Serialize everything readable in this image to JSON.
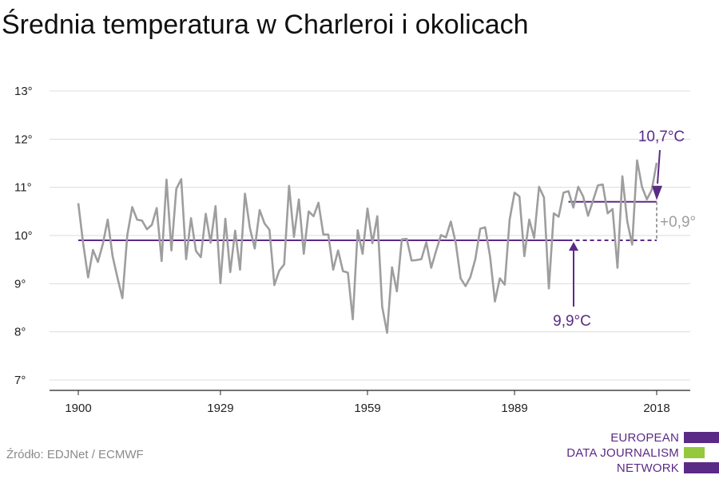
{
  "title": "Średnia temperatura w Charleroi i okolicach",
  "source": "Źródło: EDJNet / ECMWF",
  "logo": {
    "lines": [
      "EUROPEAN",
      "DATA JOURNALISM",
      "NETWORK"
    ],
    "colors": {
      "purple": "#5b2a86",
      "green": "#95c83d"
    }
  },
  "chart_data": {
    "type": "line",
    "y_ticks": [
      "13°",
      "12°",
      "11°",
      "10°",
      "9°",
      "8°",
      "7°"
    ],
    "x_ticks": [
      "1900",
      "1929",
      "1959",
      "1989",
      "2018"
    ],
    "ylim": [
      7,
      13
    ],
    "xlim": [
      1900,
      2018
    ],
    "grid": true,
    "series": [
      {
        "color": "#9e9e9e",
        "x": [
          1900,
          1901,
          1902,
          1903,
          1904,
          1905,
          1906,
          1907,
          1908,
          1909,
          1910,
          1911,
          1912,
          1913,
          1914,
          1915,
          1916,
          1917,
          1918,
          1919,
          1920,
          1921,
          1922,
          1923,
          1924,
          1925,
          1926,
          1927,
          1928,
          1929,
          1930,
          1931,
          1932,
          1933,
          1934,
          1935,
          1936,
          1937,
          1938,
          1939,
          1940,
          1941,
          1942,
          1943,
          1944,
          1945,
          1946,
          1947,
          1948,
          1949,
          1950,
          1951,
          1952,
          1953,
          1954,
          1955,
          1956,
          1957,
          1958,
          1959,
          1960,
          1961,
          1962,
          1963,
          1964,
          1965,
          1966,
          1967,
          1968,
          1969,
          1970,
          1971,
          1972,
          1973,
          1974,
          1975,
          1976,
          1977,
          1978,
          1979,
          1980,
          1981,
          1982,
          1983,
          1984,
          1985,
          1986,
          1987,
          1988,
          1989,
          1990,
          1991,
          1992,
          1993,
          1994,
          1995,
          1996,
          1997,
          1998,
          1999,
          2000,
          2001,
          2002,
          2003,
          2004,
          2005,
          2006,
          2007,
          2008,
          2009,
          2010,
          2011,
          2012,
          2013,
          2014,
          2015,
          2016,
          2017,
          2018
        ],
        "values": [
          10.67,
          9.83,
          9.13,
          9.7,
          9.45,
          9.82,
          10.33,
          9.57,
          9.12,
          8.7,
          10.01,
          10.59,
          10.33,
          10.31,
          10.13,
          10.22,
          10.57,
          9.47,
          11.16,
          9.69,
          10.97,
          11.17,
          9.51,
          10.36,
          9.68,
          9.55,
          10.45,
          9.85,
          10.61,
          9.01,
          10.35,
          9.24,
          10.1,
          9.29,
          10.87,
          10.16,
          9.73,
          10.53,
          10.25,
          10.12,
          8.97,
          9.27,
          9.4,
          11.03,
          9.97,
          10.75,
          9.62,
          10.5,
          10.4,
          10.68,
          10.02,
          10.02,
          9.29,
          9.69,
          9.26,
          9.23,
          8.26,
          10.11,
          9.62,
          10.56,
          9.84,
          10.4,
          8.52,
          7.98,
          9.34,
          8.84,
          9.92,
          9.93,
          9.48,
          9.49,
          9.51,
          9.86,
          9.33,
          9.68,
          10.01,
          9.96,
          10.29,
          9.85,
          9.11,
          8.95,
          9.14,
          9.51,
          10.14,
          10.17,
          9.57,
          8.63,
          9.11,
          8.98,
          10.33,
          10.89,
          10.81,
          9.57,
          10.33,
          9.95,
          11.01,
          10.79,
          8.9,
          10.46,
          10.39,
          10.89,
          10.92,
          10.58,
          11.01,
          10.81,
          10.41,
          10.72,
          11.04,
          11.06,
          10.46,
          10.55,
          9.33,
          11.23,
          10.29,
          9.81,
          11.56,
          11.01,
          10.75,
          10.95,
          11.51
        ]
      }
    ],
    "baseline": {
      "value": 9.9,
      "label": "9,9°C",
      "color": "#5b2a86",
      "solid_until": 2000
    },
    "recent": {
      "value": 10.7,
      "label": "10,7°C",
      "color": "#5b2a86",
      "from": 2000
    },
    "difference": {
      "label": "+0,9°",
      "color": "#9e9e9e"
    }
  }
}
